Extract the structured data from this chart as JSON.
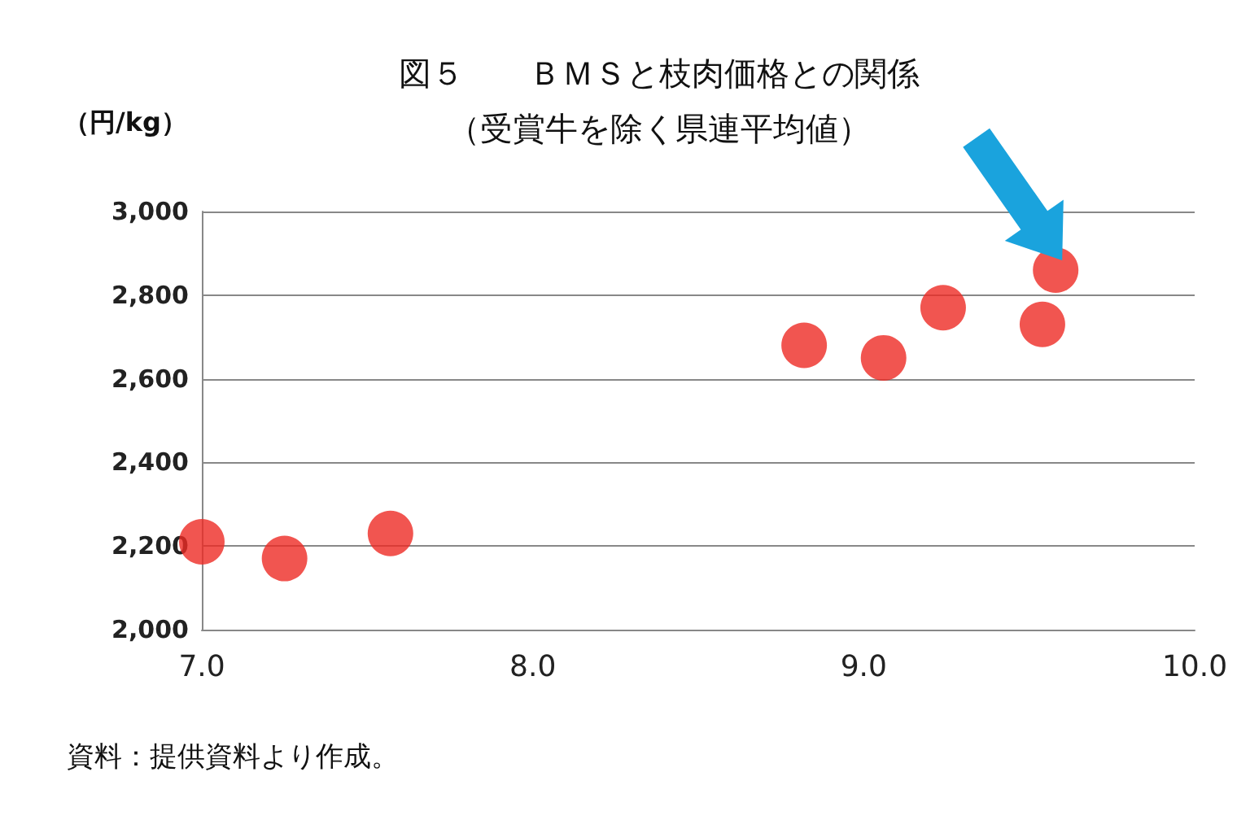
{
  "chart_data": {
    "type": "scatter",
    "title": "図５　　ＢＭＳと枝肉価格との関係",
    "subtitle": "（受賞牛を除く県連平均値）",
    "ylabel": "（円/kg）",
    "x": [
      7.0,
      7.25,
      7.57,
      8.82,
      9.06,
      9.24,
      9.54,
      9.58
    ],
    "values": [
      2210,
      2170,
      2230,
      2680,
      2650,
      2770,
      2730,
      2860
    ],
    "color": "#ee2a24",
    "marker": "circle",
    "grid": "y",
    "xlim": [
      7,
      10
    ],
    "xticks": [
      {
        "value": 7,
        "label": "7.0"
      },
      {
        "value": 8,
        "label": "8.0"
      },
      {
        "value": 9,
        "label": "9.0"
      },
      {
        "value": 10,
        "label": "10.0"
      }
    ],
    "ylim": [
      2000,
      3000
    ],
    "yticks": [
      {
        "value": 2000,
        "label": "2,000"
      },
      {
        "value": 2200,
        "label": "2,200"
      },
      {
        "value": 2400,
        "label": "2,400"
      },
      {
        "value": 2600,
        "label": "2,600"
      },
      {
        "value": 2800,
        "label": "2,800"
      },
      {
        "value": 3000,
        "label": "3,000"
      }
    ],
    "annotations": [
      "資料：提供資料より作成。"
    ]
  }
}
